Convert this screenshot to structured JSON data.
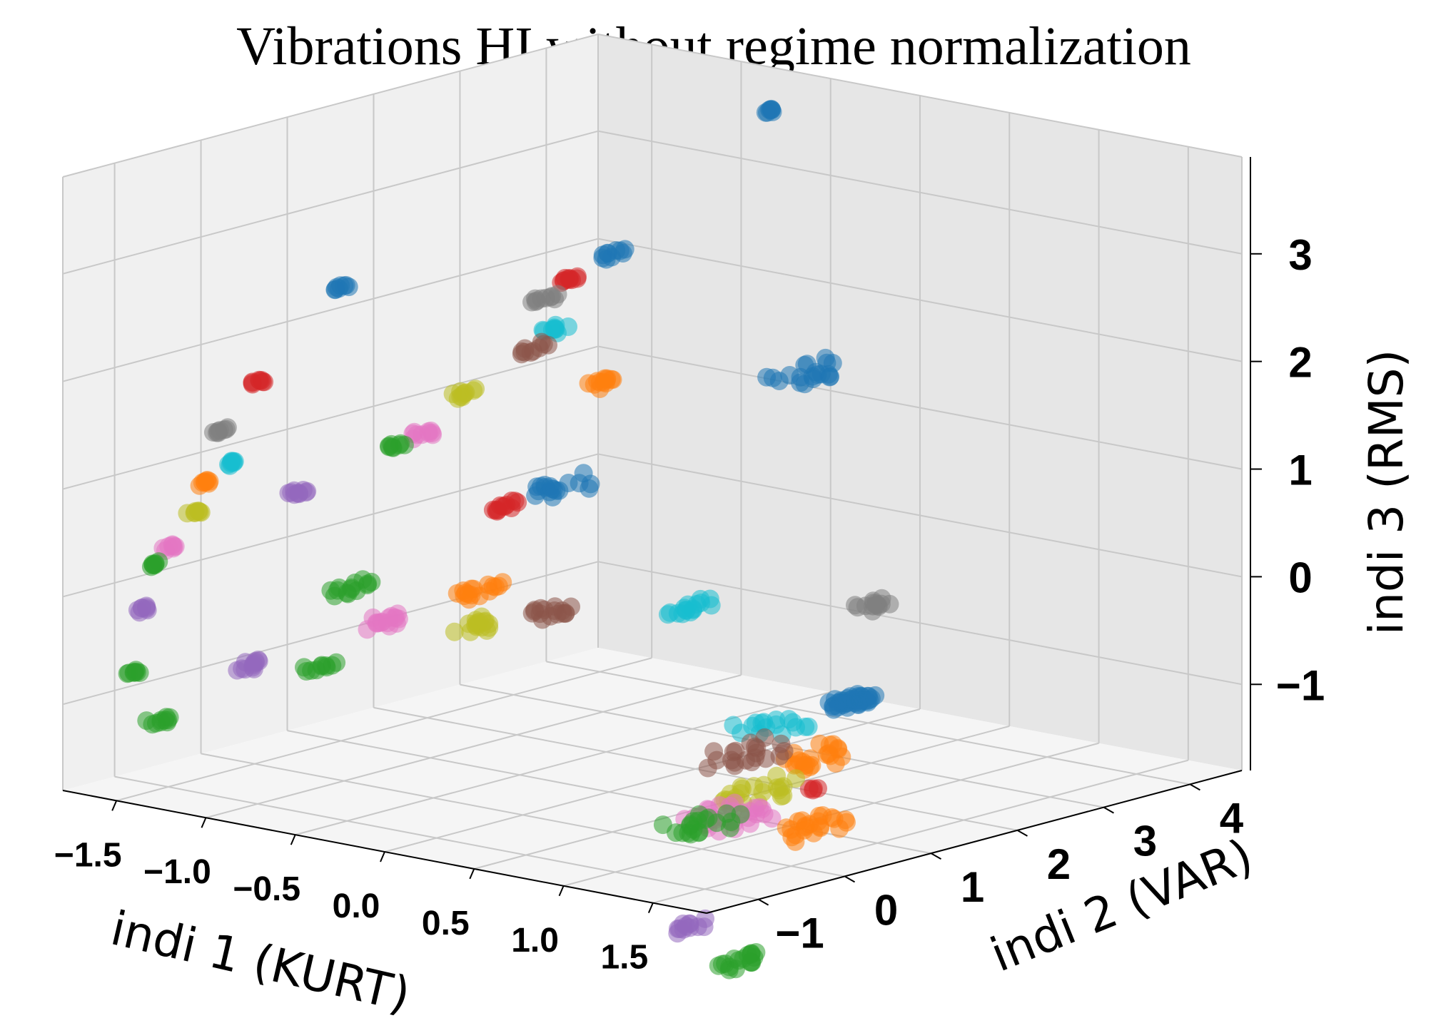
{
  "chart_data": {
    "type": "scatter",
    "dimensions": 3,
    "title": "Vibrations HI without regime normalization",
    "xlabel": "indi 1 (KURT)",
    "ylabel": "indi 2 (VAR)",
    "zlabel": "indi 3 (RMS)",
    "x_ticks": [
      "−1.5",
      "−1.0",
      "−0.5",
      "0.0",
      "0.5",
      "1.0",
      "1.5"
    ],
    "y_ticks": [
      "−1",
      "0",
      "1",
      "2",
      "3",
      "4"
    ],
    "z_ticks": [
      "−1",
      "0",
      "1",
      "2",
      "3"
    ],
    "xlim": [
      -1.8,
      1.8
    ],
    "ylim": [
      -1.6,
      4.6
    ],
    "zlim": [
      -1.8,
      3.9
    ],
    "grid": true,
    "colors": {
      "blue": "#1f77b4",
      "orange": "#ff7f0e",
      "green": "#2ca02c",
      "red": "#d62728",
      "purple": "#9467bd",
      "brown": "#8c564b",
      "pink": "#e377c2",
      "gray": "#7f7f7f",
      "olive": "#bcbd22",
      "cyan": "#17becf"
    },
    "clusters": [
      {
        "color": "blue",
        "x": -0.7,
        "y": 4.3,
        "z": 3.6,
        "spread": 0.05,
        "n": 8
      },
      {
        "color": "blue",
        "x": -0.7,
        "y": 2.5,
        "z": 2.65,
        "spread": 0.1,
        "n": 10
      },
      {
        "color": "blue",
        "x": -1.25,
        "y": 0.5,
        "z": 2.6,
        "spread": 0.05,
        "n": 8
      },
      {
        "color": "blue",
        "x": 0.0,
        "y": 3.2,
        "z": 1.6,
        "spread": 0.25,
        "n": 20
      },
      {
        "color": "blue",
        "x": 0.0,
        "y": 0.5,
        "z": 1.15,
        "spread": 0.2,
        "n": 18
      },
      {
        "color": "blue",
        "x": 1.45,
        "y": 0.8,
        "z": -0.45,
        "spread": 0.15,
        "n": 40
      },
      {
        "color": "red",
        "x": -0.8,
        "y": 2.2,
        "z": 2.45,
        "spread": 0.1,
        "n": 10
      },
      {
        "color": "red",
        "x": -1.3,
        "y": -0.4,
        "z": 1.9,
        "spread": 0.05,
        "n": 8
      },
      {
        "color": "red",
        "x": -0.35,
        "y": 0.5,
        "z": 0.85,
        "spread": 0.1,
        "n": 12
      },
      {
        "color": "gray",
        "x": -0.85,
        "y": 2.0,
        "z": 2.3,
        "spread": 0.1,
        "n": 10
      },
      {
        "color": "gray",
        "x": -1.35,
        "y": -0.7,
        "z": 1.5,
        "spread": 0.05,
        "n": 8
      },
      {
        "color": "gray",
        "x": 1.2,
        "y": 1.6,
        "z": 0.2,
        "spread": 0.12,
        "n": 14
      },
      {
        "color": "brown",
        "x": -0.6,
        "y": 1.4,
        "z": 2.05,
        "spread": 0.1,
        "n": 10
      },
      {
        "color": "brown",
        "x": 0.3,
        "y": -0.3,
        "z": 0.25,
        "spread": 0.15,
        "n": 16
      },
      {
        "color": "cyan",
        "x": -0.7,
        "y": 1.8,
        "z": 2.1,
        "spread": 0.1,
        "n": 10
      },
      {
        "color": "cyan",
        "x": -1.3,
        "y": -0.7,
        "z": 1.2,
        "spread": 0.05,
        "n": 8
      },
      {
        "color": "cyan",
        "x": 0.85,
        "y": 0.2,
        "z": 0.35,
        "spread": 0.15,
        "n": 16
      },
      {
        "color": "orange",
        "x": -0.35,
        "y": 1.6,
        "z": 1.75,
        "spread": 0.1,
        "n": 12
      },
      {
        "color": "orange",
        "x": -1.35,
        "y": -0.9,
        "z": 1.05,
        "spread": 0.05,
        "n": 8
      },
      {
        "color": "orange",
        "x": 0.0,
        "y": -0.5,
        "z": 0.4,
        "spread": 0.15,
        "n": 16
      },
      {
        "color": "olive",
        "x": -0.75,
        "y": 0.9,
        "z": 1.7,
        "spread": 0.1,
        "n": 10
      },
      {
        "color": "olive",
        "x": -1.35,
        "y": -1.0,
        "z": 0.8,
        "spread": 0.05,
        "n": 8
      },
      {
        "color": "olive",
        "x": 0.1,
        "y": -0.8,
        "z": 0.15,
        "spread": 0.15,
        "n": 16
      },
      {
        "color": "pink",
        "x": -0.85,
        "y": 0.6,
        "z": 1.35,
        "spread": 0.1,
        "n": 10
      },
      {
        "color": "pink",
        "x": -1.4,
        "y": -1.2,
        "z": 0.5,
        "spread": 0.05,
        "n": 8
      },
      {
        "color": "pink",
        "x": -0.4,
        "y": -0.8,
        "z": 0.05,
        "spread": 0.15,
        "n": 16
      },
      {
        "color": "green",
        "x": -0.85,
        "y": 0.3,
        "z": 1.3,
        "spread": 0.05,
        "n": 8
      },
      {
        "color": "green",
        "x": -1.45,
        "y": -1.3,
        "z": 0.35,
        "spread": 0.05,
        "n": 8
      },
      {
        "color": "green",
        "x": -0.7,
        "y": -0.5,
        "z": 0.2,
        "spread": 0.15,
        "n": 14
      },
      {
        "color": "green",
        "x": -0.5,
        "y": -1.3,
        "z": -0.3,
        "spread": 0.1,
        "n": 10
      },
      {
        "color": "green",
        "x": -1.5,
        "y": -1.4,
        "z": -0.65,
        "spread": 0.05,
        "n": 8
      },
      {
        "color": "green",
        "x": -1.3,
        "y": -1.5,
        "z": -1.0,
        "spread": 0.1,
        "n": 10
      },
      {
        "color": "purple",
        "x": -1.0,
        "y": -0.5,
        "z": 1.0,
        "spread": 0.08,
        "n": 10
      },
      {
        "color": "purple",
        "x": -1.45,
        "y": -1.4,
        "z": -0.05,
        "spread": 0.05,
        "n": 8
      },
      {
        "color": "purple",
        "x": -1.0,
        "y": -1.1,
        "z": -0.5,
        "spread": 0.1,
        "n": 12
      },
      {
        "color": "cyan",
        "x": 1.3,
        "y": 0.2,
        "z": -0.6,
        "spread": 0.25,
        "n": 16
      },
      {
        "color": "brown",
        "x": 1.3,
        "y": -0.1,
        "z": -0.8,
        "spread": 0.25,
        "n": 20
      },
      {
        "color": "orange",
        "x": 1.45,
        "y": 0.4,
        "z": -0.9,
        "spread": 0.25,
        "n": 22
      },
      {
        "color": "olive",
        "x": 1.4,
        "y": -0.2,
        "z": -1.1,
        "spread": 0.25,
        "n": 22
      },
      {
        "color": "pink",
        "x": 1.35,
        "y": -0.4,
        "z": -1.3,
        "spread": 0.3,
        "n": 30
      },
      {
        "color": "green",
        "x": 1.3,
        "y": -0.6,
        "z": -1.35,
        "spread": 0.25,
        "n": 20
      },
      {
        "color": "orange",
        "x": 1.6,
        "y": 0.0,
        "z": -1.4,
        "spread": 0.25,
        "n": 22
      },
      {
        "color": "red",
        "x": 1.55,
        "y": 0.2,
        "z": -1.1,
        "spread": 0.05,
        "n": 4
      },
      {
        "color": "purple",
        "x": 1.5,
        "y": -1.2,
        "z": -2.1,
        "spread": 0.12,
        "n": 12
      },
      {
        "color": "green",
        "x": 1.7,
        "y": -1.0,
        "z": -2.4,
        "spread": 0.15,
        "n": 18
      }
    ]
  }
}
